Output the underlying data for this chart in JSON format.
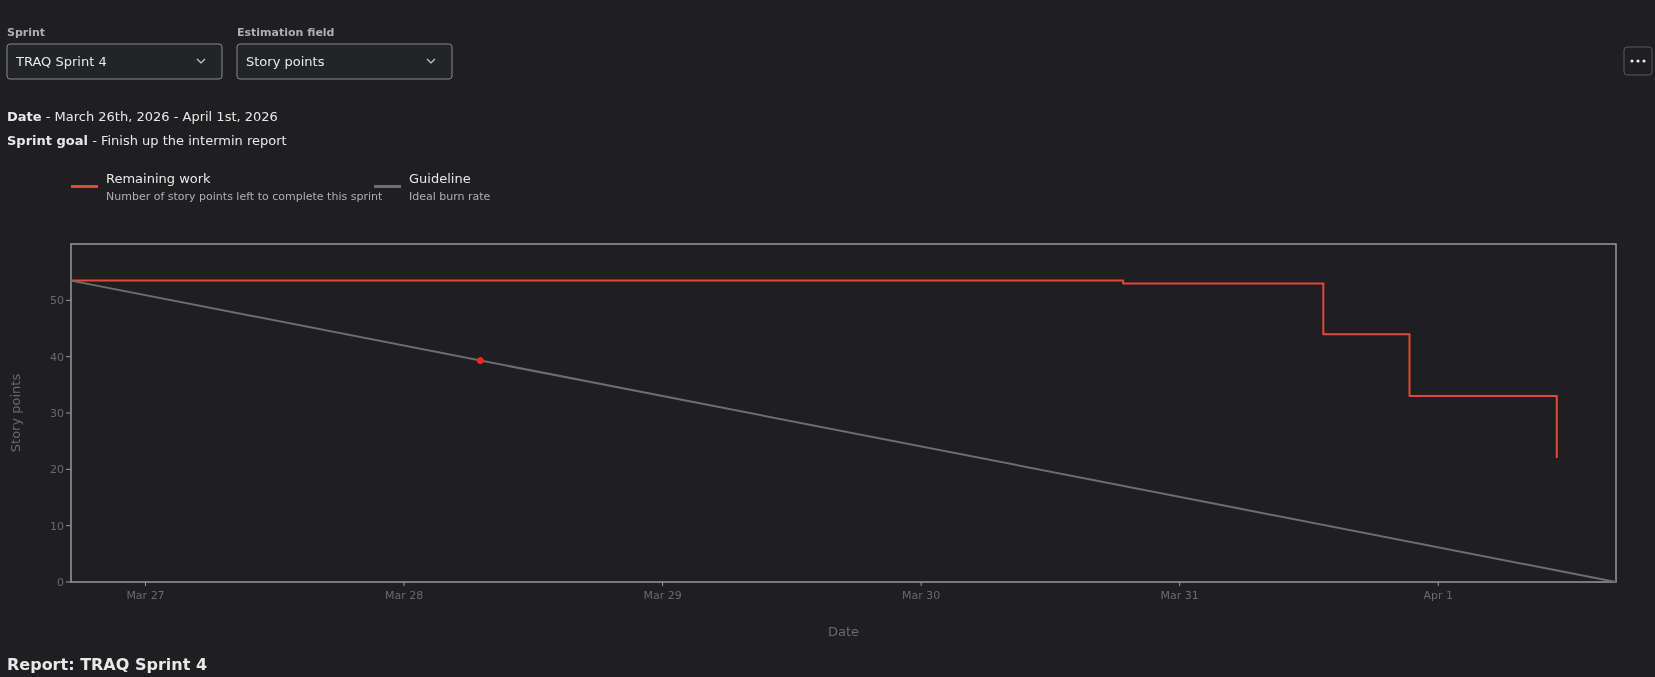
{
  "chart_data": {
    "type": "line",
    "xlabel": "Date",
    "ylabel": "Story points",
    "xlim": [
      "2026-03-26T17:05",
      "2026-04-01T16:30"
    ],
    "xticks": [
      {
        "value": "2026-03-27",
        "label": "Mar 27"
      },
      {
        "value": "2026-03-28",
        "label": "Mar 28"
      },
      {
        "value": "2026-03-29",
        "label": "Mar 29"
      },
      {
        "value": "2026-03-30",
        "label": "Mar 30"
      },
      {
        "value": "2026-03-31",
        "label": "Mar 31"
      },
      {
        "value": "2026-04-01",
        "label": "Apr 1"
      }
    ],
    "ylim": [
      0,
      60
    ],
    "yticks": [
      0,
      10,
      20,
      30,
      40,
      50
    ],
    "grid": false,
    "legend": "top left",
    "series": [
      {
        "name": "Remaining work",
        "type": "step",
        "color": "#e2483d",
        "x": [
          "2026-03-26T17:05",
          "2026-03-30T18:45",
          "2026-03-31T13:20",
          "2026-03-31T21:20",
          "2026-04-01T11:00"
        ],
        "values": [
          53.5,
          53,
          44,
          33,
          22
        ]
      },
      {
        "name": "Guideline",
        "color": "#6e6e70",
        "x": [
          "2026-03-26T17:05",
          "2026-04-01T16:30"
        ],
        "values": [
          53.5,
          0
        ]
      },
      {
        "type": "scatter",
        "color": "#ff2020",
        "x": [
          "2026-03-28T07:05"
        ],
        "values": [
          39.3
        ]
      }
    ],
    "annotations": [
      "Sprint",
      "TRAQ Sprint 4",
      "Estimation field",
      "Story points",
      "Date - March 26th, 2026 - April 1st, 2026",
      "Sprint goal - Finish up the intermin report",
      "Number of story points left to complete this sprint",
      "Ideal burn rate",
      "Report: TRAQ Sprint 4"
    ]
  }
}
